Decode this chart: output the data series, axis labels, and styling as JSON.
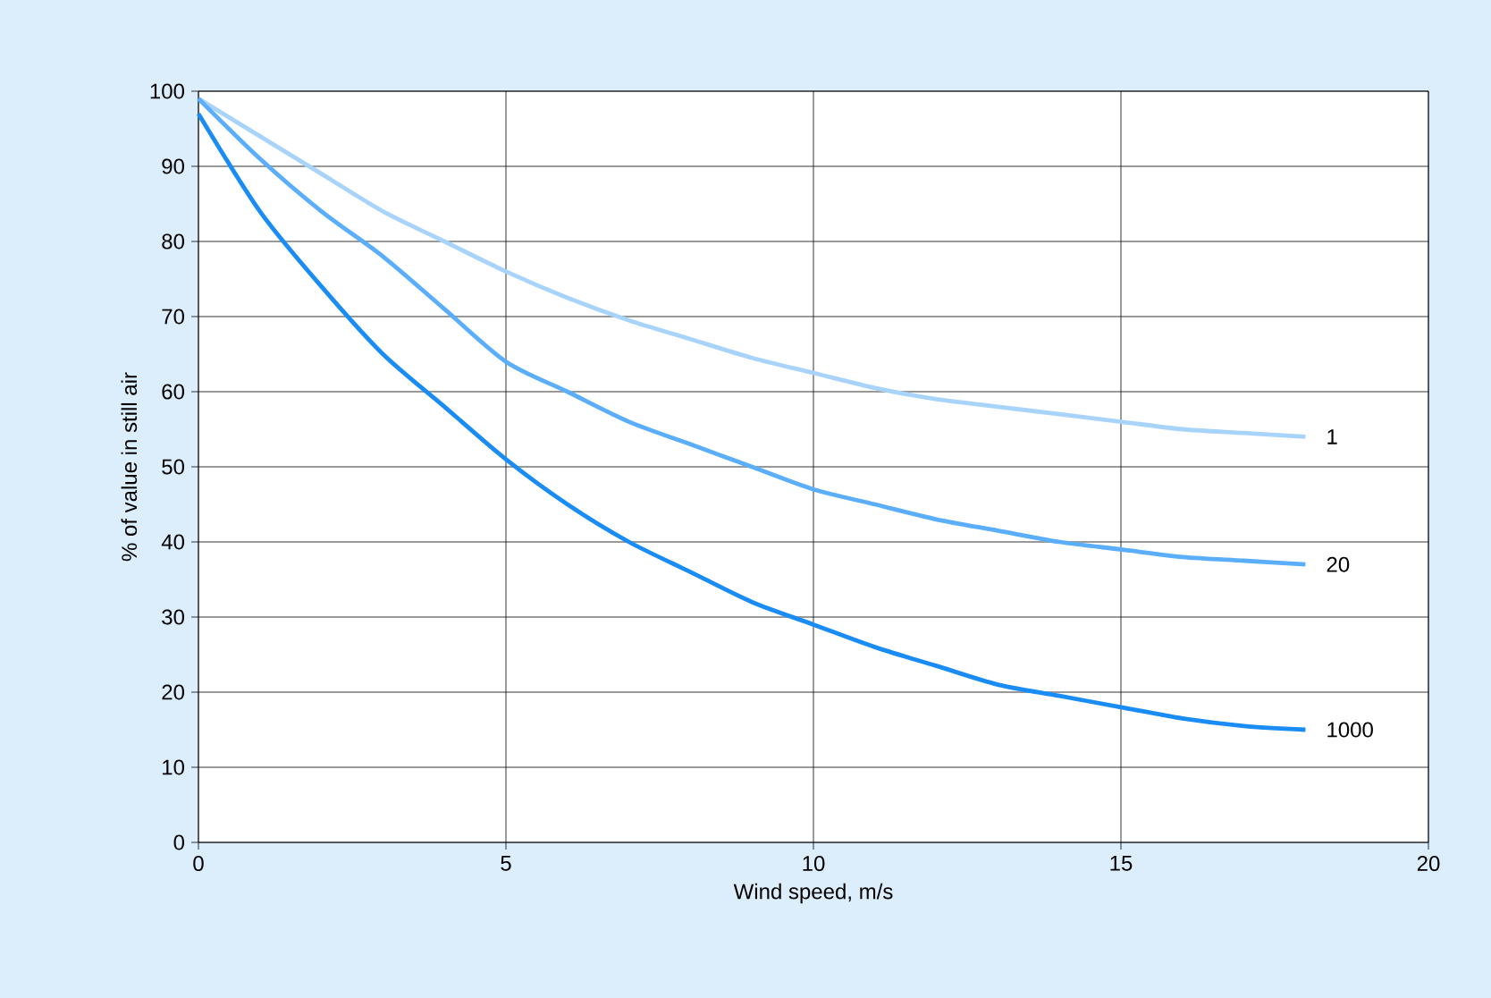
{
  "chart_data": {
    "type": "line",
    "xlabel": "Wind speed, m/s",
    "ylabel": "% of value in still air",
    "x": [
      0,
      1,
      2,
      3,
      4,
      5,
      6,
      7,
      8,
      9,
      10,
      11,
      12,
      13,
      14,
      15,
      16,
      17,
      18
    ],
    "series": [
      {
        "name": "1",
        "color": "#a8d4fc",
        "values": [
          99,
          94,
          89,
          84,
          80,
          76,
          72.5,
          69.5,
          67,
          64.5,
          62.5,
          60.5,
          59,
          58,
          57,
          56,
          55,
          54.5,
          54
        ]
      },
      {
        "name": "20",
        "color": "#5aaefc",
        "values": [
          99,
          91,
          84,
          78,
          71,
          64,
          60,
          56,
          53,
          50,
          47,
          45,
          43,
          41.5,
          40,
          39,
          38,
          37.5,
          37
        ]
      },
      {
        "name": "1000",
        "color": "#1a8cf5",
        "values": [
          97,
          84,
          74,
          65,
          58,
          51,
          45,
          40,
          36,
          32,
          29,
          26,
          23.5,
          21,
          19.5,
          18,
          16.5,
          15.5,
          15
        ]
      }
    ],
    "xlim": [
      0,
      20
    ],
    "ylim": [
      0,
      100
    ],
    "xticks": [
      0,
      5,
      10,
      15,
      20
    ],
    "yticks": [
      0,
      10,
      20,
      30,
      40,
      50,
      60,
      70,
      80,
      90,
      100
    ],
    "grid": true
  }
}
